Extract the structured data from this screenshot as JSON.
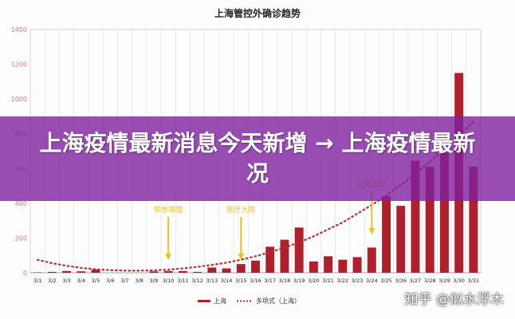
{
  "banner": {
    "headline": "上海疫情最新消息今天新增 → 上海疫情最新况"
  },
  "watermark": {
    "text": "知乎 @似水浮木"
  },
  "colors": {
    "bar": "#b0202c",
    "trend": "#c0282a",
    "annotation": "#f0c020",
    "banner": "#8020a0"
  },
  "chart_data": {
    "type": "bar",
    "title": "上海管控外确诊趋势",
    "categories": [
      "3/1",
      "3/2",
      "3/3",
      "3/4",
      "3/5",
      "3/6",
      "3/7",
      "3/8",
      "3/9",
      "3/10",
      "3/11",
      "3/12",
      "3/13",
      "3/14",
      "3/15",
      "3/16",
      "3/17",
      "3/18",
      "3/19",
      "3/20",
      "3/21",
      "3/22",
      "3/23",
      "3/24",
      "3/25",
      "3/26",
      "3/27",
      "3/28",
      "3/29",
      "3/30",
      "3/31"
    ],
    "series": [
      {
        "name": "上海",
        "type": "bar",
        "values": [
          2,
          5,
          10,
          8,
          18,
          0,
          0,
          0,
          8,
          10,
          10,
          5,
          30,
          25,
          50,
          70,
          150,
          190,
          260,
          65,
          95,
          75,
          90,
          145,
          440,
          385,
          645,
          610,
          690,
          1150,
          610
        ]
      },
      {
        "name": "多项式（上海）",
        "type": "line",
        "values": [
          75,
          55,
          40,
          28,
          20,
          15,
          12,
          12,
          14,
          18,
          25,
          34,
          45,
          58,
          75,
          95,
          118,
          145,
          175,
          210,
          250,
          290,
          340,
          390,
          445,
          505,
          570,
          640,
          710,
          790,
          870
        ]
      }
    ],
    "yticks": [
      0,
      200,
      400,
      600,
      800,
      1000,
      1200,
      1400
    ],
    "ylim": [
      0,
      1400
    ],
    "annotations": [
      {
        "label": "华亭宾馆",
        "category": "3/10"
      },
      {
        "label": "医疗大院",
        "category": "3/15"
      },
      {
        "label": "北蔡市场",
        "category": "3/24"
      }
    ],
    "legend": [
      "上海",
      "多项式（上海）"
    ],
    "legend_position": "bottom",
    "grid": "vertical"
  }
}
